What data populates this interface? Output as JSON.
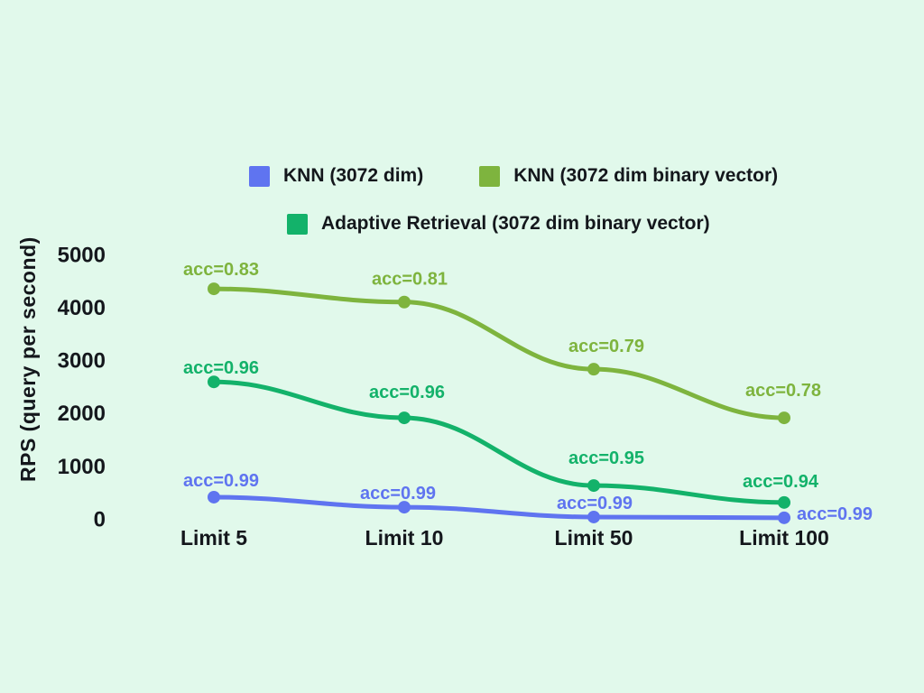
{
  "figure": {
    "background": "#e1f9eb",
    "text_color": "#14171c"
  },
  "chart_data": {
    "type": "line",
    "title": "",
    "xlabel": "",
    "ylabel": "RPS (query per second)",
    "ylim": [
      0,
      5000
    ],
    "yticks": [
      5000,
      4000,
      3000,
      2000,
      1000,
      0
    ],
    "categories": [
      "Limit 5",
      "Limit 10",
      "Limit 50",
      "Limit 100"
    ],
    "grid": false,
    "legend_position": "top",
    "series": [
      {
        "name": "KNN (3072 dim)",
        "color": "#5f74f0",
        "values": [
          410,
          220,
          35,
          20
        ],
        "point_labels": [
          "acc=0.99",
          "acc=0.99",
          "acc=0.99",
          "acc=0.99"
        ]
      },
      {
        "name": "KNN (3072 dim binary vector)",
        "color": "#7eb43e",
        "values": [
          4350,
          4100,
          2830,
          1910
        ],
        "point_labels": [
          "acc=0.83",
          "acc=0.81",
          "acc=0.79",
          "acc=0.78"
        ]
      },
      {
        "name": "Adaptive Retrieval (3072 dim binary vector)",
        "color": "#13b26a",
        "values": [
          2590,
          1910,
          630,
          310
        ],
        "point_labels": [
          "acc=0.96",
          "acc=0.96",
          "acc=0.95",
          "acc=0.94"
        ]
      }
    ]
  }
}
